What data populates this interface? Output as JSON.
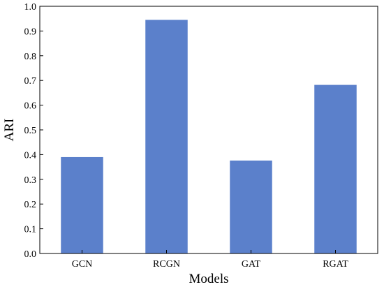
{
  "chart_data": {
    "type": "bar",
    "categories": [
      "GCN",
      "RCGN",
      "GAT",
      "RGAT"
    ],
    "values": [
      0.39,
      0.945,
      0.376,
      0.682
    ],
    "title": "",
    "xlabel": "Models",
    "ylabel": "ARI",
    "ylim": [
      0,
      1.0
    ],
    "yticks": [
      "0.0",
      "0.1",
      "0.2",
      "0.3",
      "0.4",
      "0.5",
      "0.6",
      "0.7",
      "0.8",
      "0.9",
      "1.0"
    ],
    "bar_color": "#5b80cb",
    "grid": false,
    "legend": "none"
  }
}
